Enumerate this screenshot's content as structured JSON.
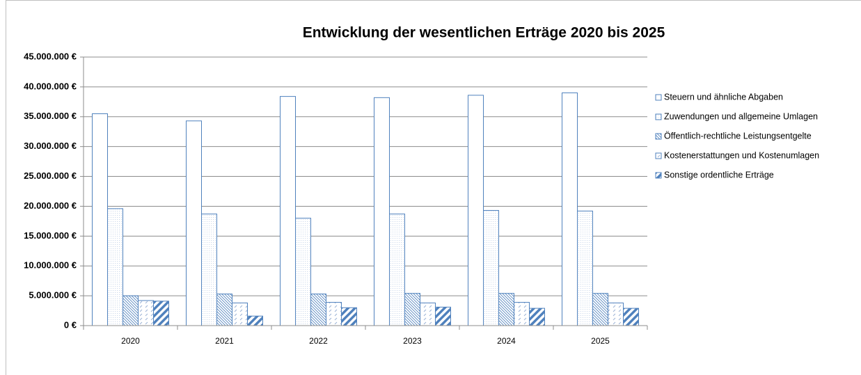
{
  "chart_data": {
    "type": "bar",
    "title": "Entwicklung der wesentlichen Erträge 2020 bis 2025",
    "categories": [
      "2020",
      "2021",
      "2022",
      "2023",
      "2024",
      "2025"
    ],
    "series": [
      {
        "name": "Steuern und ähnliche Abgaben",
        "color": "#4f81bd",
        "pattern": "none",
        "values": [
          35500000,
          34300000,
          38400000,
          38200000,
          38600000,
          39000000
        ]
      },
      {
        "name": "Zuwendungen und allgemeine Umlagen",
        "color": "#4f81bd",
        "pattern": "dots",
        "values": [
          19600000,
          18700000,
          18000000,
          18700000,
          19300000,
          19200000
        ]
      },
      {
        "name": "Öffentlich-rechtliche Leistungsentgelte",
        "color": "#4f81bd",
        "pattern": "diag-thin",
        "values": [
          5000000,
          5300000,
          5300000,
          5400000,
          5400000,
          5400000
        ]
      },
      {
        "name": "Kostenerstattungen und Kostenumlagen",
        "color": "#4f81bd",
        "pattern": "dash",
        "values": [
          4200000,
          3800000,
          3900000,
          3800000,
          3900000,
          3800000
        ]
      },
      {
        "name": "Sonstige ordentliche Erträge",
        "color": "#4f81bd",
        "pattern": "diag-thick",
        "values": [
          4100000,
          1600000,
          3000000,
          3100000,
          2900000,
          2900000
        ]
      }
    ],
    "ylim": [
      0,
      45000000
    ],
    "yticks": [
      {
        "value": 0,
        "label": "0 €"
      },
      {
        "value": 5000000,
        "label": "5.000.000 €"
      },
      {
        "value": 10000000,
        "label": "10.000.000 €"
      },
      {
        "value": 15000000,
        "label": "15.000.000 €"
      },
      {
        "value": 20000000,
        "label": "20.000.000 €"
      },
      {
        "value": 25000000,
        "label": "25.000.000 €"
      },
      {
        "value": 30000000,
        "label": "30.000.000 €"
      },
      {
        "value": 35000000,
        "label": "35.000.000 €"
      },
      {
        "value": 40000000,
        "label": "40.000.000 €"
      },
      {
        "value": 45000000,
        "label": "45.000.000 €"
      }
    ],
    "grid": true,
    "legend": "right"
  }
}
